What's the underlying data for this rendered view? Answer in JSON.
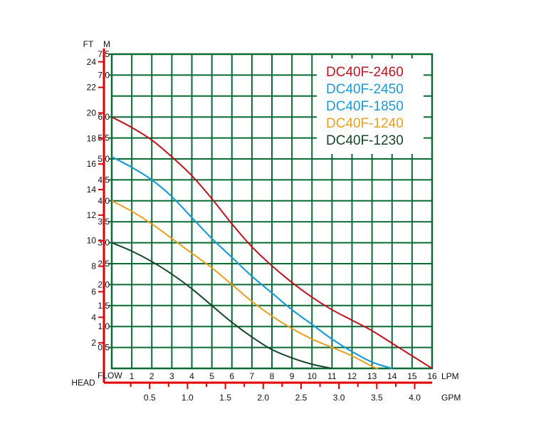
{
  "chart_data": {
    "type": "line",
    "x_axis": {
      "label": "FLOW",
      "unit": "LPM",
      "range": [
        0,
        16
      ],
      "ticks": [
        "1",
        "2",
        "3",
        "4",
        "5",
        "6",
        "7",
        "8",
        "9",
        "10",
        "11",
        "12",
        "13",
        "14",
        "15",
        "16"
      ]
    },
    "x2_axis": {
      "unit": "GPM",
      "range": [
        0,
        4.23
      ],
      "ticks": [
        "0.5",
        "1.0",
        "1.5",
        "2.0",
        "2.5",
        "3.0",
        "3.5",
        "4.0"
      ]
    },
    "y_axis": {
      "unit": "M",
      "range": [
        0,
        7.5
      ],
      "ticks": [
        "0.5",
        "1.0",
        "1.5",
        "2.0",
        "2.5",
        "3.0",
        "3.5",
        "4.0",
        "4.5",
        "5.0",
        "5.5",
        "6.0",
        "7.0",
        "7.5"
      ]
    },
    "y2_axis": {
      "label": "HEAD",
      "unit": "FT",
      "range": [
        0,
        24.6
      ],
      "ticks": [
        "2",
        "4",
        "6",
        "8",
        "10",
        "12",
        "14",
        "16",
        "18",
        "20",
        "22",
        "24"
      ]
    },
    "grid": true,
    "legend_position": "top-right",
    "series": [
      {
        "name": "DC40F-2460",
        "color": "#c0121f",
        "x": [
          0,
          1,
          2,
          3,
          4,
          5,
          6,
          7,
          8,
          9,
          10,
          11,
          12,
          13,
          14,
          15,
          16
        ],
        "y": [
          6.0,
          5.75,
          5.45,
          5.05,
          4.6,
          4.05,
          3.45,
          2.9,
          2.45,
          2.05,
          1.7,
          1.4,
          1.15,
          0.9,
          0.6,
          0.3,
          0.0
        ]
      },
      {
        "name": "DC40F-2450",
        "color": "#1c9ad6",
        "x": [
          0,
          1,
          2,
          3,
          4,
          5,
          6,
          7,
          8,
          9,
          10,
          11,
          12,
          13,
          14
        ],
        "y": [
          5.05,
          4.8,
          4.5,
          4.1,
          3.6,
          3.1,
          2.65,
          2.2,
          1.8,
          1.4,
          1.05,
          0.7,
          0.4,
          0.15,
          0.0
        ]
      },
      {
        "name": "DC40F-1850",
        "color": "#1c9ad6",
        "x": [
          0,
          1,
          2,
          3,
          4,
          5,
          6,
          7,
          8,
          9,
          10,
          11,
          12,
          13,
          14
        ],
        "y": [
          5.05,
          4.8,
          4.5,
          4.1,
          3.6,
          3.1,
          2.65,
          2.2,
          1.8,
          1.4,
          1.05,
          0.7,
          0.4,
          0.15,
          0.0
        ]
      },
      {
        "name": "DC40F-1240",
        "color": "#e8a020",
        "x": [
          0,
          1,
          2,
          3,
          4,
          5,
          6,
          7,
          8,
          9,
          10,
          11,
          12,
          13,
          13.3
        ],
        "y": [
          4.0,
          3.75,
          3.45,
          3.1,
          2.75,
          2.4,
          2.0,
          1.6,
          1.25,
          0.95,
          0.7,
          0.5,
          0.3,
          0.05,
          0.0
        ]
      },
      {
        "name": "DC40F-1230",
        "color": "#17472c",
        "x": [
          0,
          1,
          2,
          3,
          4,
          5,
          6,
          7,
          8,
          9,
          10,
          11
        ],
        "y": [
          3.0,
          2.8,
          2.55,
          2.25,
          1.9,
          1.5,
          1.1,
          0.75,
          0.45,
          0.25,
          0.1,
          0.0
        ]
      }
    ]
  }
}
